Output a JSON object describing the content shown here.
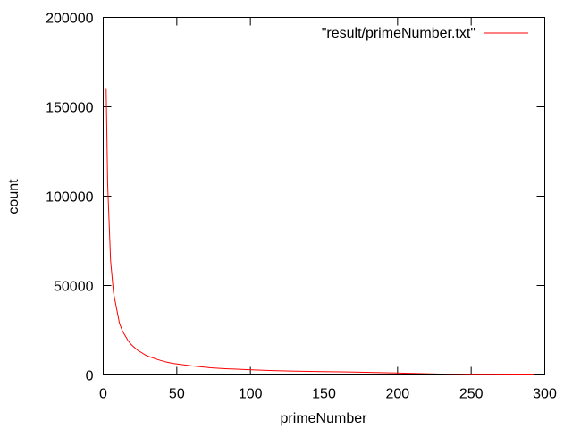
{
  "chart_data": {
    "type": "line",
    "title": "",
    "xlabel": "primeNumber",
    "ylabel": "count",
    "xlim": [
      0,
      300
    ],
    "ylim": [
      0,
      200000
    ],
    "xticks": [
      0,
      50,
      100,
      150,
      200,
      250,
      300
    ],
    "yticks": [
      0,
      50000,
      100000,
      150000,
      200000
    ],
    "xtick_labels": [
      "0",
      "50",
      "100",
      "150",
      "200",
      "250",
      "300"
    ],
    "ytick_labels": [
      "0",
      "50000",
      "100000",
      "150000",
      "200000"
    ],
    "grid": false,
    "legend_position": "top-right",
    "series": [
      {
        "name": "\"result/primeNumber.txt\"",
        "color": "#ff0000",
        "x": [
          2,
          3,
          5,
          7,
          11,
          13,
          17,
          19,
          23,
          29,
          31,
          37,
          41,
          43,
          47,
          53,
          59,
          61,
          67,
          71,
          73,
          79,
          83,
          89,
          97,
          101,
          113,
          127,
          149,
          167,
          199,
          229,
          251,
          281,
          293
        ],
        "y": [
          160000,
          107000,
          64000,
          46000,
          29000,
          24700,
          19000,
          17000,
          14000,
          11000,
          10300,
          8600,
          7600,
          7200,
          6500,
          5800,
          5200,
          5000,
          4500,
          4200,
          4000,
          3700,
          3500,
          3300,
          3000,
          2900,
          2500,
          2200,
          1900,
          1700,
          1100,
          500,
          150,
          30,
          0
        ]
      }
    ]
  }
}
